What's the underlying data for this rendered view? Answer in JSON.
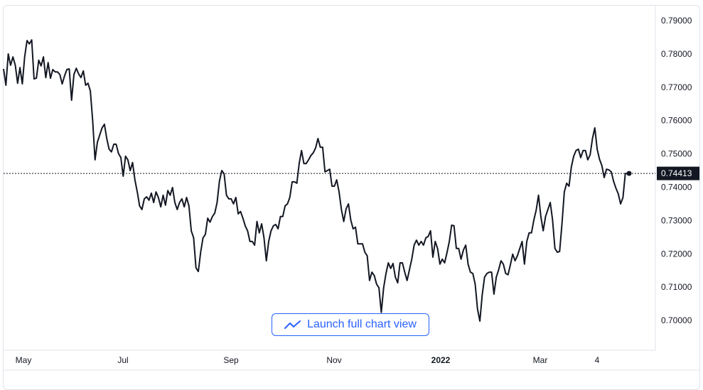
{
  "chart_data": {
    "type": "line",
    "title": "",
    "xlabel": "",
    "ylabel": "",
    "ylim": [
      0.6911,
      0.7945
    ],
    "y_ticks": [
      "0.79000",
      "0.78000",
      "0.77000",
      "0.76000",
      "0.75000",
      "0.74000",
      "0.73000",
      "0.72000",
      "0.71000",
      "0.70000"
    ],
    "x_ticks": [
      {
        "label": "May",
        "bold": false
      },
      {
        "label": "Jul",
        "bold": false
      },
      {
        "label": "Sep",
        "bold": false
      },
      {
        "label": "Nov",
        "bold": false
      },
      {
        "label": "2022",
        "bold": true
      },
      {
        "label": "Mar",
        "bold": false
      },
      {
        "label": "4",
        "bold": false
      }
    ],
    "last_price_label": "0.74413",
    "last_price": 0.74413,
    "grid": false,
    "line_color": "#131722",
    "values": [
      0.7755,
      0.7706,
      0.78,
      0.7766,
      0.7791,
      0.7766,
      0.7712,
      0.7759,
      0.771,
      0.7791,
      0.784,
      0.783,
      0.7842,
      0.7725,
      0.7727,
      0.7781,
      0.7764,
      0.7791,
      0.7729,
      0.7774,
      0.7727,
      0.7753,
      0.7746,
      0.7746,
      0.7738,
      0.771,
      0.7734,
      0.7753,
      0.7755,
      0.7661,
      0.7738,
      0.7757,
      0.774,
      0.7729,
      0.7749,
      0.7706,
      0.7712,
      0.7689,
      0.7599,
      0.7482,
      0.7535,
      0.7557,
      0.7578,
      0.7589,
      0.7546,
      0.7514,
      0.7506,
      0.7529,
      0.7529,
      0.7501,
      0.7489,
      0.7433,
      0.7493,
      0.7482,
      0.745,
      0.7474,
      0.7422,
      0.7386,
      0.7344,
      0.7333,
      0.7365,
      0.7371,
      0.7361,
      0.7382,
      0.7354,
      0.7386,
      0.7369,
      0.7341,
      0.7376,
      0.7346,
      0.739,
      0.7376,
      0.7399,
      0.7354,
      0.7333,
      0.7354,
      0.7365,
      0.7341,
      0.7369,
      0.7344,
      0.7269,
      0.7248,
      0.7158,
      0.7147,
      0.7205,
      0.7248,
      0.7258,
      0.7307,
      0.7295,
      0.7312,
      0.7322,
      0.7354,
      0.7418,
      0.745,
      0.744,
      0.7376,
      0.7365,
      0.7365,
      0.735,
      0.7369,
      0.732,
      0.7327,
      0.7307,
      0.7284,
      0.7269,
      0.7237,
      0.7237,
      0.7226,
      0.7297,
      0.7263,
      0.729,
      0.7248,
      0.7179,
      0.7237,
      0.7269,
      0.7284,
      0.7288,
      0.7275,
      0.7312,
      0.7312,
      0.7344,
      0.735,
      0.7369,
      0.7416,
      0.7416,
      0.7412,
      0.7471,
      0.751,
      0.7471,
      0.7471,
      0.7482,
      0.7495,
      0.7503,
      0.7518,
      0.7546,
      0.752,
      0.752,
      0.7446,
      0.745,
      0.7454,
      0.7403,
      0.7403,
      0.7422,
      0.7386,
      0.7333,
      0.7297,
      0.7335,
      0.735,
      0.7301,
      0.7275,
      0.728,
      0.723,
      0.723,
      0.723,
      0.7205,
      0.7194,
      0.712,
      0.7145,
      0.7135,
      0.7109,
      0.7098,
      0.7024,
      0.7098,
      0.7141,
      0.7173,
      0.7156,
      0.7171,
      0.713,
      0.7113,
      0.7173,
      0.7173,
      0.7145,
      0.712,
      0.7152,
      0.7184,
      0.7226,
      0.7241,
      0.7226,
      0.7237,
      0.7226,
      0.7248,
      0.7252,
      0.7269,
      0.719,
      0.7237,
      0.7216,
      0.7169,
      0.7184,
      0.7173,
      0.7203,
      0.7237,
      0.7286,
      0.7284,
      0.7216,
      0.7216,
      0.7184,
      0.7211,
      0.7226,
      0.7169,
      0.7145,
      0.7141,
      0.7109,
      0.7034,
      0.6998,
      0.7077,
      0.713,
      0.7141,
      0.7145,
      0.7145,
      0.7079,
      0.713,
      0.7152,
      0.7179,
      0.7169,
      0.7141,
      0.7137,
      0.7167,
      0.7199,
      0.7179,
      0.7194,
      0.7216,
      0.7237,
      0.7169,
      0.7237,
      0.7263,
      0.7263,
      0.7301,
      0.7331,
      0.7376,
      0.7312,
      0.7269,
      0.7312,
      0.7333,
      0.7354,
      0.7301,
      0.7216,
      0.7205,
      0.7207,
      0.729,
      0.7386,
      0.7412,
      0.7403,
      0.7461,
      0.7493,
      0.751,
      0.7514,
      0.7489,
      0.751,
      0.751,
      0.7482,
      0.7497,
      0.7546,
      0.7578,
      0.7514,
      0.7484,
      0.7465,
      0.7429,
      0.7454,
      0.7452,
      0.7446,
      0.7418,
      0.7397,
      0.738,
      0.735,
      0.7369,
      0.7441,
      0.7441
    ]
  },
  "button": {
    "label": "Launch full chart view",
    "icon": "line-chart-icon",
    "color": "#2962ff"
  }
}
